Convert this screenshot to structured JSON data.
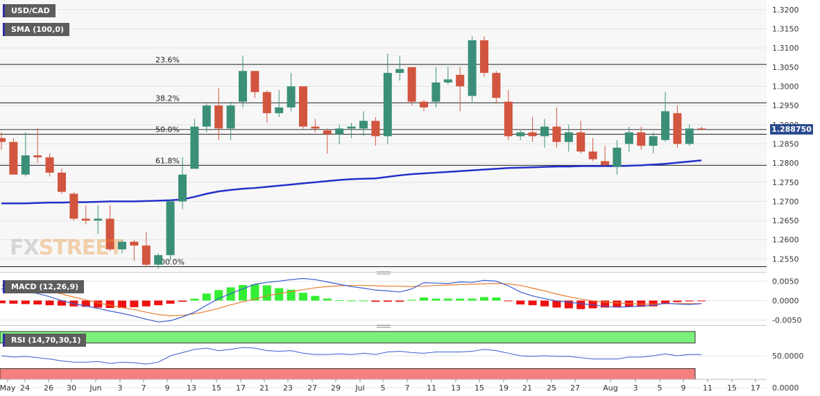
{
  "chart_data": [
    {
      "type": "candlestick",
      "title": "USD/CAD",
      "indicator": "SMA (100,0)",
      "ylim": [
        1.252,
        1.3225
      ],
      "y_ticks": [
        "1.3200",
        "1.3150",
        "1.3100",
        "1.3050",
        "1.3000",
        "1.2950",
        "1.2900",
        "1.2850",
        "1.2800",
        "1.2750",
        "1.2700",
        "1.2650",
        "1.2600",
        "1.2550"
      ],
      "x_ticks": [
        "May",
        "24",
        "26",
        "30",
        "Jun",
        "3",
        "7",
        "9",
        "13",
        "15",
        "17",
        "21",
        "23",
        "27",
        "29",
        "Jul",
        "5",
        "7",
        "11",
        "13",
        "15",
        "19",
        "21",
        "25",
        "27",
        "Aug",
        "3",
        "5",
        "9",
        "11",
        "15",
        "17"
      ],
      "last_price": "1.288750",
      "fib_levels": [
        {
          "label": "23.6%",
          "value": 1.3057
        },
        {
          "label": "38.2%",
          "value": 1.2957
        },
        {
          "label": "50.0%",
          "value": 1.2875
        },
        {
          "label": "61.8%",
          "value": 1.2794
        },
        {
          "label": "100.0%",
          "value": 1.253
        }
      ],
      "candles": [
        {
          "o": 1.2865,
          "h": 1.288,
          "l": 1.2835,
          "c": 1.2855
        },
        {
          "o": 1.2855,
          "h": 1.2865,
          "l": 1.277,
          "c": 1.277
        },
        {
          "o": 1.277,
          "h": 1.288,
          "l": 1.2765,
          "c": 1.282
        },
        {
          "o": 1.282,
          "h": 1.289,
          "l": 1.28,
          "c": 1.2815
        },
        {
          "o": 1.2815,
          "h": 1.2825,
          "l": 1.2765,
          "c": 1.2775
        },
        {
          "o": 1.2775,
          "h": 1.2785,
          "l": 1.272,
          "c": 1.2725
        },
        {
          "o": 1.272,
          "h": 1.2725,
          "l": 1.265,
          "c": 1.2655
        },
        {
          "o": 1.2655,
          "h": 1.269,
          "l": 1.264,
          "c": 1.265
        },
        {
          "o": 1.265,
          "h": 1.269,
          "l": 1.2615,
          "c": 1.2655
        },
        {
          "o": 1.2655,
          "h": 1.269,
          "l": 1.257,
          "c": 1.2575
        },
        {
          "o": 1.2575,
          "h": 1.26,
          "l": 1.2565,
          "c": 1.2595
        },
        {
          "o": 1.2595,
          "h": 1.26,
          "l": 1.2545,
          "c": 1.2585
        },
        {
          "o": 1.2585,
          "h": 1.262,
          "l": 1.253,
          "c": 1.2535
        },
        {
          "o": 1.2535,
          "h": 1.2565,
          "l": 1.2525,
          "c": 1.256
        },
        {
          "o": 1.256,
          "h": 1.2705,
          "l": 1.2545,
          "c": 1.27
        },
        {
          "o": 1.27,
          "h": 1.2815,
          "l": 1.268,
          "c": 1.277
        },
        {
          "o": 1.2785,
          "h": 1.2915,
          "l": 1.2785,
          "c": 1.2895
        },
        {
          "o": 1.2895,
          "h": 1.2955,
          "l": 1.288,
          "c": 1.295
        },
        {
          "o": 1.295,
          "h": 1.2995,
          "l": 1.286,
          "c": 1.289
        },
        {
          "o": 1.289,
          "h": 1.296,
          "l": 1.286,
          "c": 1.295
        },
        {
          "o": 1.296,
          "h": 1.308,
          "l": 1.2945,
          "c": 1.304
        },
        {
          "o": 1.304,
          "h": 1.304,
          "l": 1.297,
          "c": 1.2985
        },
        {
          "o": 1.2985,
          "h": 1.299,
          "l": 1.2905,
          "c": 1.293
        },
        {
          "o": 1.293,
          "h": 1.299,
          "l": 1.292,
          "c": 1.2945
        },
        {
          "o": 1.2945,
          "h": 1.3035,
          "l": 1.2935,
          "c": 1.3
        },
        {
          "o": 1.3,
          "h": 1.3,
          "l": 1.289,
          "c": 1.2895
        },
        {
          "o": 1.2895,
          "h": 1.2915,
          "l": 1.288,
          "c": 1.289
        },
        {
          "o": 1.2885,
          "h": 1.289,
          "l": 1.2825,
          "c": 1.2875
        },
        {
          "o": 1.2875,
          "h": 1.29,
          "l": 1.285,
          "c": 1.289
        },
        {
          "o": 1.289,
          "h": 1.2905,
          "l": 1.2865,
          "c": 1.2895
        },
        {
          "o": 1.289,
          "h": 1.2935,
          "l": 1.287,
          "c": 1.291
        },
        {
          "o": 1.291,
          "h": 1.292,
          "l": 1.2845,
          "c": 1.287
        },
        {
          "o": 1.287,
          "h": 1.3085,
          "l": 1.285,
          "c": 1.3035
        },
        {
          "o": 1.3035,
          "h": 1.308,
          "l": 1.3015,
          "c": 1.3045
        },
        {
          "o": 1.305,
          "h": 1.305,
          "l": 1.295,
          "c": 1.296
        },
        {
          "o": 1.296,
          "h": 1.2965,
          "l": 1.2935,
          "c": 1.2945
        },
        {
          "o": 1.296,
          "h": 1.305,
          "l": 1.2945,
          "c": 1.301
        },
        {
          "o": 1.301,
          "h": 1.305,
          "l": 1.3005,
          "c": 1.3018
        },
        {
          "o": 1.303,
          "h": 1.305,
          "l": 1.2935,
          "c": 1.3
        },
        {
          "o": 1.2975,
          "h": 1.313,
          "l": 1.296,
          "c": 1.312
        },
        {
          "o": 1.312,
          "h": 1.313,
          "l": 1.3025,
          "c": 1.3035
        },
        {
          "o": 1.3035,
          "h": 1.304,
          "l": 1.2955,
          "c": 1.297
        },
        {
          "o": 1.296,
          "h": 1.299,
          "l": 1.286,
          "c": 1.287
        },
        {
          "o": 1.287,
          "h": 1.2885,
          "l": 1.286,
          "c": 1.288
        },
        {
          "o": 1.288,
          "h": 1.292,
          "l": 1.2855,
          "c": 1.287
        },
        {
          "o": 1.287,
          "h": 1.2915,
          "l": 1.284,
          "c": 1.2895
        },
        {
          "o": 1.2895,
          "h": 1.2945,
          "l": 1.284,
          "c": 1.2855
        },
        {
          "o": 1.2855,
          "h": 1.29,
          "l": 1.283,
          "c": 1.288
        },
        {
          "o": 1.288,
          "h": 1.291,
          "l": 1.2825,
          "c": 1.283
        },
        {
          "o": 1.283,
          "h": 1.2865,
          "l": 1.2805,
          "c": 1.281
        },
        {
          "o": 1.2805,
          "h": 1.2845,
          "l": 1.279,
          "c": 1.2795
        },
        {
          "o": 1.279,
          "h": 1.286,
          "l": 1.277,
          "c": 1.284
        },
        {
          "o": 1.285,
          "h": 1.2895,
          "l": 1.283,
          "c": 1.288
        },
        {
          "o": 1.288,
          "h": 1.2895,
          "l": 1.2835,
          "c": 1.2845
        },
        {
          "o": 1.2845,
          "h": 1.288,
          "l": 1.2825,
          "c": 1.287
        },
        {
          "o": 1.286,
          "h": 1.2985,
          "l": 1.2855,
          "c": 1.2935
        },
        {
          "o": 1.293,
          "h": 1.295,
          "l": 1.284,
          "c": 1.285
        },
        {
          "o": 1.285,
          "h": 1.29,
          "l": 1.2845,
          "c": 1.289
        },
        {
          "o": 1.289,
          "h": 1.2895,
          "l": 1.2885,
          "c": 1.28875
        }
      ],
      "sma": [
        1.2695,
        1.2695,
        1.2695,
        1.2696,
        1.2697,
        1.2697,
        1.2698,
        1.2698,
        1.2699,
        1.27,
        1.27,
        1.27,
        1.2701,
        1.2702,
        1.2703,
        1.2705,
        1.2712,
        1.272,
        1.2726,
        1.273,
        1.2733,
        1.2735,
        1.2738,
        1.2741,
        1.2744,
        1.2747,
        1.275,
        1.2753,
        1.2756,
        1.2758,
        1.2759,
        1.276,
        1.2764,
        1.2768,
        1.2771,
        1.2773,
        1.2775,
        1.2777,
        1.2779,
        1.2781,
        1.2783,
        1.2785,
        1.2787,
        1.2788,
        1.2789,
        1.279,
        1.2791,
        1.2791,
        1.2792,
        1.2792,
        1.2792,
        1.2792,
        1.2793,
        1.2794,
        1.2796,
        1.2798,
        1.2801,
        1.2804,
        1.2807
      ]
    },
    {
      "type": "macd",
      "title": "MACD (12,26,9)",
      "ylim": [
        -0.006,
        0.0065
      ],
      "y_ticks": [
        "0.0050",
        "0.0000",
        "-0.0050"
      ],
      "histogram": [
        -0.0007,
        -0.0008,
        -0.0009,
        -0.001,
        -0.0012,
        -0.0013,
        -0.0015,
        -0.0016,
        -0.0018,
        -0.0019,
        -0.0019,
        -0.0017,
        -0.0015,
        -0.0012,
        -0.0008,
        -0.0003,
        0.0005,
        0.0018,
        0.0027,
        0.0034,
        0.004,
        0.0042,
        0.0039,
        0.0032,
        0.0028,
        0.002,
        0.0012,
        0.0005,
        0.0001,
        0.0,
        0.0,
        -0.0003,
        -0.0003,
        -0.0003,
        0.0002,
        0.0008,
        0.0005,
        0.0005,
        0.0005,
        0.0005,
        0.0009,
        0.0008,
        -0.0001,
        -0.001,
        -0.0012,
        -0.0015,
        -0.0018,
        -0.002,
        -0.0022,
        -0.002,
        -0.0018,
        -0.0017,
        -0.0016,
        -0.0016,
        -0.0015,
        -0.0007,
        -0.0004,
        -0.0002,
        -0.0001
      ],
      "macd_line": [
        0.003,
        0.0028,
        0.0023,
        0.0018,
        0.001,
        0.0,
        -0.0008,
        -0.0014,
        -0.002,
        -0.0027,
        -0.0033,
        -0.004,
        -0.0048,
        -0.0055,
        -0.0052,
        -0.0042,
        -0.003,
        -0.0012,
        0.0005,
        0.0018,
        0.003,
        0.0042,
        0.0047,
        0.005,
        0.0054,
        0.0057,
        0.0054,
        0.0048,
        0.0042,
        0.0036,
        0.0032,
        0.0027,
        0.0025,
        0.0022,
        0.003,
        0.0046,
        0.0045,
        0.0044,
        0.0048,
        0.0047,
        0.0052,
        0.005,
        0.0038,
        0.0022,
        0.0012,
        0.0005,
        -0.0001,
        -0.0004,
        -0.0008,
        -0.0011,
        -0.0015,
        -0.0017,
        -0.0016,
        -0.0014,
        -0.0012,
        -0.0007,
        -0.0009,
        -0.001,
        -0.0008
      ],
      "signal_line": [
        0.0039,
        0.0038,
        0.0034,
        0.003,
        0.0024,
        0.0017,
        0.0009,
        0.0002,
        -0.0006,
        -0.0012,
        -0.0018,
        -0.0023,
        -0.003,
        -0.0036,
        -0.0039,
        -0.0038,
        -0.0034,
        -0.0028,
        -0.002,
        -0.0011,
        -0.0003,
        0.0004,
        0.0012,
        0.0018,
        0.0023,
        0.0028,
        0.0033,
        0.0036,
        0.0038,
        0.0039,
        0.0039,
        0.0038,
        0.0037,
        0.0037,
        0.0036,
        0.0037,
        0.0039,
        0.004,
        0.0041,
        0.0042,
        0.0043,
        0.0044,
        0.0043,
        0.0039,
        0.0032,
        0.0025,
        0.0017,
        0.001,
        0.0004,
        -0.0001,
        -0.0004,
        -0.0006,
        -0.0008,
        -0.0009,
        -0.0009,
        -0.0008,
        -0.0008,
        -0.0008,
        -0.0008
      ]
    },
    {
      "type": "rsi",
      "title": "RSI (14,70,30,1)",
      "ylim": [
        0,
        100
      ],
      "y_ticks": [
        "50.0000",
        "0.0000"
      ],
      "overbought": 70,
      "oversold": 30,
      "values": [
        50,
        48,
        49,
        47,
        45,
        42,
        40,
        40,
        41,
        38,
        40,
        39,
        37,
        40,
        50,
        55,
        60,
        62,
        58,
        60,
        63,
        62,
        58,
        57,
        58,
        54,
        52,
        52,
        53,
        52,
        54,
        52,
        56,
        57,
        55,
        54,
        56,
        56,
        56,
        57,
        60,
        58,
        54,
        50,
        49,
        50,
        49,
        49,
        47,
        45,
        45,
        45,
        48,
        48,
        50,
        53,
        50,
        52,
        52
      ]
    }
  ],
  "labels": {
    "pair": "USD/CAD",
    "sma": "SMA (100,0)",
    "macd": "MACD (12,26,9)",
    "rsi": "RSI (14,70,30,1)",
    "last_price": "1.288750",
    "watermark_a": "FX",
    "watermark_b": "STREET"
  },
  "colors": {
    "bull": "#3b8f78",
    "bear": "#d2553f",
    "sma": "#2230c8",
    "macd_line": "#3a5bd1",
    "signal_line": "#e67a2e",
    "hist_pos": "#33ee33",
    "hist_neg": "#ee1111",
    "rsi_line": "#3a5bd1",
    "overbought": "#7bf07b",
    "oversold": "#f47f7f"
  }
}
